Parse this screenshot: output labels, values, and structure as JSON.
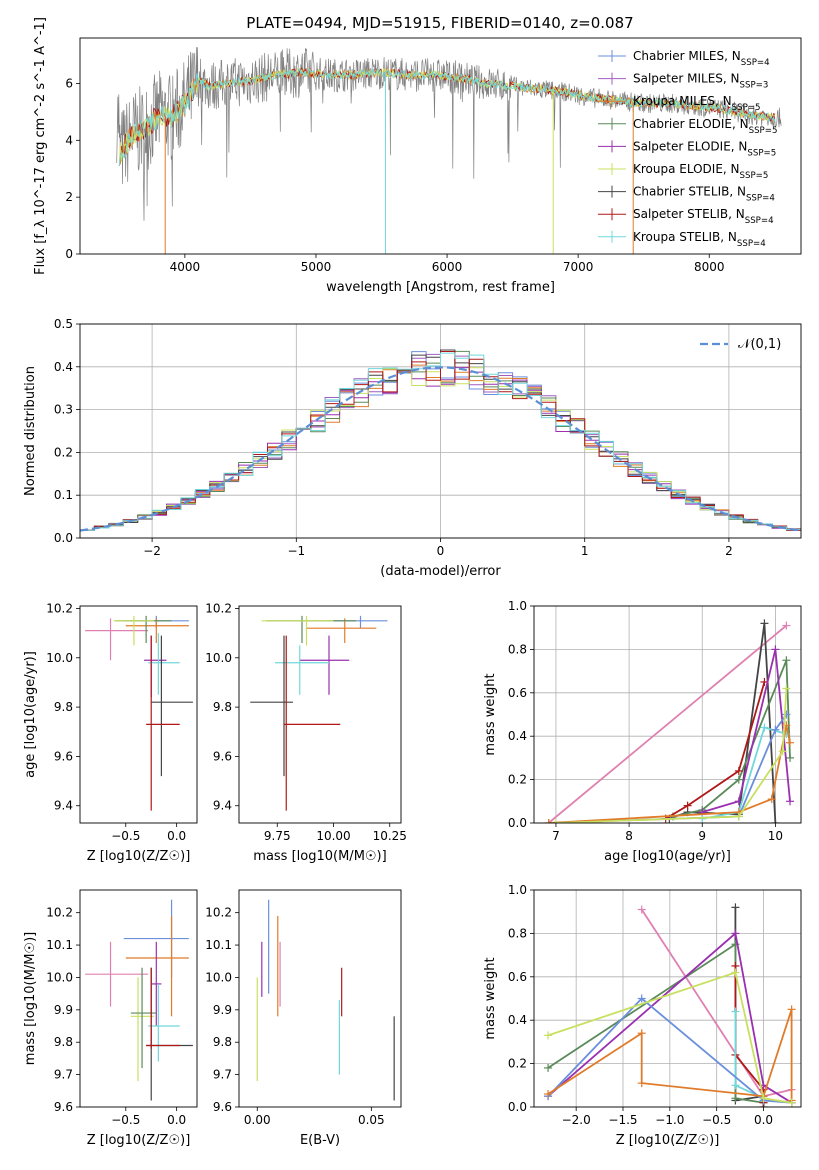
{
  "title": "PLATE=0494, MJD=51915, FIBERID=0140, z=0.087",
  "colors": {
    "chabrier_miles": "#6a8fdc",
    "salpeter_miles": "#a05fc0",
    "kroupa_miles": "#e07b2a",
    "chabrier_elodie": "#5a8a5a",
    "salpeter_elodie": "#9a30b0",
    "kroupa_elodie": "#c8e060",
    "chabrier_stelib": "#444444",
    "salpeter_stelib": "#b01818",
    "kroupa_stelib": "#70d8dc",
    "pink": "#e080b0",
    "normal": "#5b8fd6"
  },
  "chart_data": [
    {
      "type": "line",
      "title": "PLATE=0494, MJD=51915, FIBERID=0140, z=0.087",
      "xlabel": "wavelength [Angstrom, rest frame]",
      "ylabel": "Flux [f_λ 10^-17 erg cm^-2 s^-1 A^-1]",
      "xlim": [
        3200,
        8700
      ],
      "ylim": [
        0,
        7.6
      ],
      "xticks": [
        4000,
        5000,
        6000,
        7000,
        8000
      ],
      "yticks": [
        0,
        2,
        4,
        6
      ],
      "legend": [
        "Chabrier MILES, N_SSP=4",
        "Salpeter MILES, N_SSP=3",
        "Kroupa MILES, N_SSP=5",
        "Chabrier ELODIE, N_SSP=5",
        "Salpeter ELODIE, N_SSP=5",
        "Kroupa ELODIE, N_SSP=5",
        "Chabrier STELIB, N_SSP=4",
        "Salpeter STELIB, N_SSP=4",
        "Kroupa STELIB, N_SSP=4"
      ],
      "legend_loc": "right",
      "continuum": {
        "x": [
          3500,
          3600,
          3700,
          3800,
          3900,
          4000,
          4100,
          4200,
          4300,
          4500,
          4700,
          4900,
          5100,
          5300,
          5500,
          5700,
          5900,
          6100,
          6300,
          6500,
          6700,
          6900,
          7100,
          7300,
          7500,
          7700,
          7900,
          8100,
          8300,
          8500
        ],
        "y": [
          3.5,
          4.2,
          4.4,
          4.9,
          4.8,
          5.3,
          6.1,
          5.9,
          6.0,
          6.1,
          6.3,
          6.4,
          6.3,
          6.3,
          6.4,
          6.3,
          6.3,
          6.2,
          6.0,
          5.9,
          5.8,
          5.7,
          5.5,
          5.4,
          5.3,
          5.3,
          5.2,
          5.1,
          4.9,
          4.8
        ]
      }
    },
    {
      "type": "line",
      "xlabel": "(data-model)/error",
      "ylabel": "Normed distribution",
      "xlim": [
        -2.5,
        2.5
      ],
      "ylim": [
        0,
        0.5
      ],
      "xticks": [
        -2,
        -1,
        0,
        1,
        2
      ],
      "yticks": [
        0.0,
        0.1,
        0.2,
        0.3,
        0.4,
        0.5
      ],
      "legend": [
        "𝒩(0,1)"
      ],
      "legend_loc": "top-right",
      "bin_width": 0.1,
      "series": [
        {
          "name": "𝒩(0,1)",
          "mean": 0,
          "sigma": 1
        }
      ]
    },
    {
      "type": "scatter",
      "xlabel": "Z [log10(Z/Z☉)]",
      "ylabel": "age  [log10(age/yr)]",
      "xlim": [
        -0.95,
        0.2
      ],
      "ylim": [
        9.33,
        10.21
      ],
      "xticks": [
        -0.5,
        0.0
      ],
      "yticks": [
        9.4,
        9.6,
        9.8,
        10.0,
        10.2
      ],
      "points": [
        {
          "c": "chabrier_miles",
          "x": -0.2,
          "y": 10.15,
          "xl": -0.52,
          "xh": 0.12,
          "yl": 10.12,
          "yh": 10.17
        },
        {
          "c": "kroupa_miles",
          "x": -0.2,
          "y": 10.13,
          "xl": -0.5,
          "xh": 0.12,
          "yl": 10.06,
          "yh": 10.16
        },
        {
          "c": "pink",
          "x": -0.65,
          "y": 10.11,
          "xl": -0.9,
          "xh": -0.28,
          "yl": 9.99,
          "yh": 10.16
        },
        {
          "c": "chabrier_elodie",
          "x": -0.3,
          "y": 10.15,
          "xl": -0.6,
          "xh": -0.05,
          "yl": 10.06,
          "yh": 10.17
        },
        {
          "c": "kroupa_elodie",
          "x": -0.42,
          "y": 10.15,
          "xl": -0.62,
          "xh": -0.22,
          "yl": 10.05,
          "yh": 10.17
        },
        {
          "c": "salpeter_elodie",
          "x": -0.25,
          "y": 9.99,
          "xl": -0.32,
          "xh": -0.1,
          "yl": 9.84,
          "yh": 10.09
        },
        {
          "c": "kroupa_stelib",
          "x": -0.18,
          "y": 9.98,
          "xl": -0.28,
          "xh": 0.03,
          "yl": 9.85,
          "yh": 10.1
        },
        {
          "c": "chabrier_stelib",
          "x": -0.15,
          "y": 9.82,
          "xl": -0.25,
          "xh": 0.16,
          "yl": 9.52,
          "yh": 10.09
        },
        {
          "c": "salpeter_stelib",
          "x": -0.25,
          "y": 9.73,
          "xl": -0.3,
          "xh": 0.03,
          "yl": 9.38,
          "yh": 10.09
        }
      ]
    },
    {
      "type": "scatter",
      "xlabel": "mass [log10(M/M☉)]",
      "xlim": [
        9.58,
        10.3
      ],
      "ylim": [
        9.33,
        10.21
      ],
      "xticks": [
        9.75,
        10.0,
        10.25
      ],
      "yticks": [
        9.4,
        9.6,
        9.8,
        10.0,
        10.2
      ],
      "points": [
        {
          "c": "chabrier_miles",
          "x": 10.12,
          "y": 10.15,
          "xl": 9.98,
          "xh": 10.24,
          "yl": 10.12,
          "yh": 10.17
        },
        {
          "c": "kroupa_miles",
          "x": 10.05,
          "y": 10.12,
          "xl": 9.88,
          "xh": 10.19,
          "yl": 10.06,
          "yh": 10.16
        },
        {
          "c": "chabrier_elodie",
          "x": 9.86,
          "y": 10.15,
          "xl": 9.7,
          "xh": 10.1,
          "yl": 10.06,
          "yh": 10.17
        },
        {
          "c": "kroupa_elodie",
          "x": 9.88,
          "y": 10.15,
          "xl": 9.68,
          "xh": 10.0,
          "yl": 10.05,
          "yh": 10.17
        },
        {
          "c": "salpeter_elodie",
          "x": 9.98,
          "y": 9.99,
          "xl": 9.85,
          "xh": 10.07,
          "yl": 9.85,
          "yh": 10.09
        },
        {
          "c": "kroupa_stelib",
          "x": 9.85,
          "y": 9.98,
          "xl": 9.74,
          "xh": 9.98,
          "yl": 9.85,
          "yh": 10.05
        },
        {
          "c": "chabrier_stelib",
          "x": 9.78,
          "y": 9.82,
          "xl": 9.63,
          "xh": 9.82,
          "yl": 9.52,
          "yh": 10.09
        },
        {
          "c": "salpeter_stelib",
          "x": 9.79,
          "y": 9.73,
          "xl": 9.78,
          "xh": 10.03,
          "yl": 9.38,
          "yh": 10.09
        }
      ]
    },
    {
      "type": "line",
      "xlabel": "age  [log10(age/yr)]",
      "ylabel": "mass weight",
      "xlim": [
        6.7,
        10.35
      ],
      "ylim": [
        0,
        1.0
      ],
      "xticks": [
        7,
        8,
        9,
        10
      ],
      "yticks": [
        0.0,
        0.2,
        0.4,
        0.6,
        0.8,
        1.0
      ],
      "series": [
        {
          "c": "pink",
          "x": [
            6.9,
            10.15
          ],
          "y": [
            0.0,
            0.91
          ]
        },
        {
          "c": "chabrier_stelib",
          "x": [
            8.55,
            8.8,
            9.5,
            9.85,
            10.0
          ],
          "y": [
            0.02,
            0.05,
            0.04,
            0.92,
            0.0
          ]
        },
        {
          "c": "chabrier_elodie",
          "x": [
            8.6,
            9.0,
            9.5,
            10.15,
            10.2
          ],
          "y": [
            0.03,
            0.06,
            0.2,
            0.75,
            0.3
          ]
        },
        {
          "c": "salpeter_stelib",
          "x": [
            8.5,
            8.8,
            9.5,
            9.85
          ],
          "y": [
            0.02,
            0.08,
            0.24,
            0.65
          ]
        },
        {
          "c": "salpeter_elodie",
          "x": [
            9.0,
            9.5,
            10.0,
            10.2
          ],
          "y": [
            0.05,
            0.1,
            0.8,
            0.1
          ]
        },
        {
          "c": "kroupa_stelib",
          "x": [
            9.0,
            9.5,
            9.85,
            10.15
          ],
          "y": [
            0.02,
            0.05,
            0.44,
            0.41
          ]
        },
        {
          "c": "chabrier_miles",
          "x": [
            6.9,
            9.5,
            10.0,
            10.15
          ],
          "y": [
            0.0,
            0.03,
            0.43,
            0.5
          ]
        },
        {
          "c": "kroupa_miles",
          "x": [
            6.9,
            9.5,
            9.95,
            10.15,
            10.2
          ],
          "y": [
            0.0,
            0.05,
            0.11,
            0.45,
            0.37
          ]
        },
        {
          "c": "kroupa_elodie",
          "x": [
            7.0,
            9.5,
            10.1,
            10.15
          ],
          "y": [
            0.0,
            0.03,
            0.33,
            0.62
          ]
        }
      ]
    },
    {
      "type": "scatter",
      "xlabel": "Z [log10(Z/Z☉)]",
      "ylabel": "mass [log10(M/M☉)]",
      "xlim": [
        -0.95,
        0.2
      ],
      "ylim": [
        9.6,
        10.27
      ],
      "xticks": [
        -0.5,
        0.0
      ],
      "yticks": [
        9.6,
        9.7,
        9.8,
        9.9,
        10.0,
        10.1,
        10.2
      ],
      "points": [
        {
          "c": "chabrier_miles",
          "x": -0.05,
          "y": 10.12,
          "xl": -0.52,
          "xh": 0.12,
          "yl": 10.0,
          "yh": 10.24
        },
        {
          "c": "kroupa_miles",
          "x": -0.05,
          "y": 10.06,
          "xl": -0.5,
          "xh": 0.12,
          "yl": 9.88,
          "yh": 10.19
        },
        {
          "c": "pink",
          "x": -0.65,
          "y": 10.01,
          "xl": -0.9,
          "xh": -0.28,
          "yl": 9.91,
          "yh": 10.11
        },
        {
          "c": "salpeter_elodie",
          "x": -0.2,
          "y": 9.98,
          "xl": -0.25,
          "xh": -0.15,
          "yl": 9.85,
          "yh": 10.11
        },
        {
          "c": "kroupa_elodie",
          "x": -0.38,
          "y": 9.88,
          "xl": -0.45,
          "xh": -0.22,
          "yl": 9.68,
          "yh": 10.0
        },
        {
          "c": "chabrier_elodie",
          "x": -0.34,
          "y": 9.89,
          "xl": -0.45,
          "xh": -0.2,
          "yl": 9.72,
          "yh": 10.03
        },
        {
          "c": "kroupa_stelib",
          "x": -0.18,
          "y": 9.85,
          "xl": -0.28,
          "xh": 0.03,
          "yl": 9.74,
          "yh": 9.98
        },
        {
          "c": "chabrier_stelib",
          "x": -0.25,
          "y": 9.79,
          "xl": -0.3,
          "xh": 0.16,
          "yl": 9.62,
          "yh": 10.03
        },
        {
          "c": "salpeter_stelib",
          "x": -0.25,
          "y": 9.79,
          "xl": -0.3,
          "xh": 0.03,
          "yl": 9.78,
          "yh": 10.03
        }
      ]
    },
    {
      "type": "scatter",
      "xlabel": "E(B-V)",
      "xlim": [
        -0.008,
        0.063
      ],
      "ylim": [
        9.6,
        10.27
      ],
      "xticks": [
        0.0,
        0.05
      ],
      "yticks": [
        9.6,
        9.7,
        9.8,
        9.9,
        10.0,
        10.1,
        10.2
      ],
      "points": [
        {
          "c": "chabrier_miles",
          "x": 0.005,
          "y": 10.12,
          "yl": 9.95,
          "yh": 10.24
        },
        {
          "c": "salpeter_elodie",
          "x": 0.002,
          "y": 10.06,
          "yl": 9.94,
          "yh": 10.11
        },
        {
          "c": "kroupa_elodie",
          "x": 0.0,
          "y": 9.95,
          "yl": 9.68,
          "yh": 10.0
        },
        {
          "c": "kroupa_miles",
          "x": 0.009,
          "y": 10.05,
          "yl": 9.88,
          "yh": 10.19
        },
        {
          "c": "pink",
          "x": 0.01,
          "y": 10.0,
          "yl": 9.91,
          "yh": 10.11
        },
        {
          "c": "salpeter_stelib",
          "x": 0.037,
          "y": 9.93,
          "yl": 9.88,
          "yh": 10.03
        },
        {
          "c": "kroupa_stelib",
          "x": 0.036,
          "y": 9.85,
          "yl": 9.7,
          "yh": 9.93
        },
        {
          "c": "chabrier_stelib",
          "x": 0.06,
          "y": 9.75,
          "yl": 9.62,
          "yh": 9.88
        }
      ]
    },
    {
      "type": "line",
      "xlabel": "Z [log10(Z/Z☉)]",
      "ylabel": "mass weight",
      "xlim": [
        -2.45,
        0.4
      ],
      "ylim": [
        0,
        1.0
      ],
      "xticks": [
        -2.0,
        -1.5,
        -1.0,
        -0.5,
        0.0
      ],
      "yticks": [
        0.0,
        0.2,
        0.4,
        0.6,
        0.8,
        1.0
      ],
      "series": [
        {
          "c": "pink",
          "x": [
            -1.3,
            0.0,
            0.3
          ],
          "y": [
            0.91,
            0.05,
            0.08
          ]
        },
        {
          "c": "chabrier_stelib",
          "x": [
            -0.3,
            -0.3,
            0.0,
            0.0
          ],
          "y": [
            0.92,
            0.03,
            0.05,
            0.0
          ]
        },
        {
          "c": "chabrier_elodie",
          "x": [
            -2.3,
            -0.3,
            -0.3,
            0.0
          ],
          "y": [
            0.18,
            0.75,
            0.04,
            0.02
          ]
        },
        {
          "c": "salpeter_stelib",
          "x": [
            -0.3,
            -0.3,
            0.0,
            0.0
          ],
          "y": [
            0.65,
            0.24,
            0.08,
            0.02
          ]
        },
        {
          "c": "salpeter_elodie",
          "x": [
            -2.3,
            -0.3,
            0.0,
            0.3
          ],
          "y": [
            0.05,
            0.8,
            0.1,
            0.02
          ]
        },
        {
          "c": "kroupa_stelib",
          "x": [
            -0.3,
            -0.3,
            0.0
          ],
          "y": [
            0.44,
            0.1,
            0.04
          ]
        },
        {
          "c": "chabrier_miles",
          "x": [
            -2.3,
            -1.3,
            0.0,
            0.3
          ],
          "y": [
            0.05,
            0.5,
            0.03,
            0.02
          ]
        },
        {
          "c": "kroupa_miles",
          "x": [
            -2.3,
            -1.3,
            -1.3,
            0.0,
            0.3,
            0.3
          ],
          "y": [
            0.06,
            0.34,
            0.11,
            0.05,
            0.45,
            0.03
          ]
        },
        {
          "c": "kroupa_elodie",
          "x": [
            -2.3,
            -0.3,
            0.0,
            0.3
          ],
          "y": [
            0.33,
            0.62,
            0.04,
            0.02
          ]
        }
      ]
    }
  ]
}
